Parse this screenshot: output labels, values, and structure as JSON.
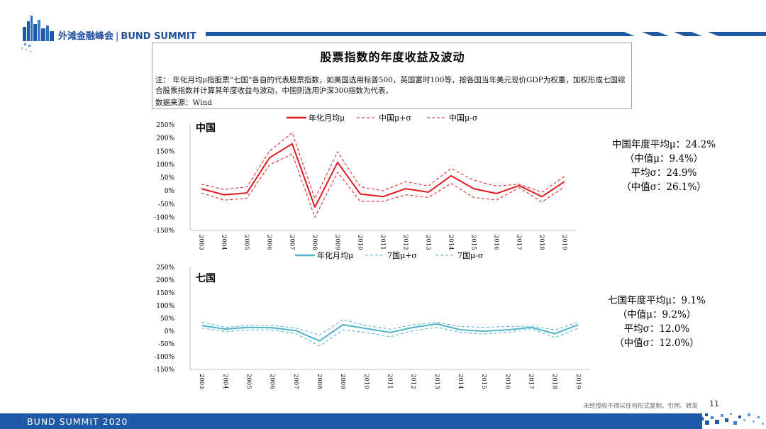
{
  "header": {
    "brand_cn": "外滩金融峰会",
    "brand_en": "BUND SUMMIT"
  },
  "title": "股票指数的年度收益及波动",
  "note": "注：  年化月均μ指股票“七国”各自的代表股票指数，如美国选用标普500，英国富时100等，按各国当年美元现价GDP为权重，加权形成七国综合股票指数并计算其年度收益与波动，中国则选用沪深300指数为代表。",
  "source": "数据来源：Wind",
  "colors": {
    "china": "#e0191e",
    "g7": "#4fb3c9",
    "brand": "#1f5aa6"
  },
  "chart_data": [
    {
      "type": "line",
      "panel_label": "中国",
      "x": [
        "2003",
        "2004",
        "2005",
        "2006",
        "2007",
        "2008",
        "2009",
        "2010",
        "2011",
        "2012",
        "2013",
        "2014",
        "2015",
        "2016",
        "2017",
        "2018",
        "2019"
      ],
      "ylim": [
        -150,
        250
      ],
      "yticks": [
        "250%",
        "200%",
        "150%",
        "100%",
        "50%",
        "0%",
        "-50%",
        "-100%",
        "-150%"
      ],
      "series": [
        {
          "name": "年化月均μ",
          "style": "solid",
          "values": [
            8,
            -15,
            -8,
            125,
            178,
            -62,
            108,
            -12,
            -22,
            8,
            -5,
            57,
            8,
            -10,
            20,
            -22,
            35
          ]
        },
        {
          "name": "中国μ+σ",
          "style": "dashed",
          "values": [
            25,
            5,
            15,
            150,
            220,
            -30,
            148,
            15,
            0,
            35,
            18,
            85,
            40,
            18,
            25,
            -5,
            55
          ]
        },
        {
          "name": "中国μ-σ",
          "style": "dashed",
          "values": [
            -8,
            -35,
            -28,
            98,
            140,
            -100,
            70,
            -40,
            -40,
            -15,
            -25,
            28,
            -25,
            -35,
            12,
            -42,
            15
          ]
        }
      ]
    },
    {
      "type": "line",
      "panel_label": "七国",
      "x": [
        "2003",
        "2004",
        "2005",
        "2006",
        "2007",
        "2008",
        "2009",
        "2010",
        "2011",
        "2012",
        "2013",
        "2014",
        "2015",
        "2016",
        "2017",
        "2018",
        "2019"
      ],
      "ylim": [
        -150,
        250
      ],
      "yticks": [
        "250%",
        "200%",
        "150%",
        "100%",
        "50%",
        "0%",
        "-50%",
        "-100%",
        "-150%"
      ],
      "series": [
        {
          "name": "年化月均μ",
          "style": "solid",
          "values": [
            22,
            8,
            15,
            13,
            2,
            -38,
            25,
            10,
            -5,
            15,
            28,
            5,
            0,
            5,
            15,
            -10,
            25
          ]
        },
        {
          "name": "7国μ+σ",
          "style": "dashed",
          "values": [
            35,
            15,
            22,
            22,
            12,
            -15,
            45,
            22,
            8,
            25,
            35,
            18,
            15,
            18,
            20,
            5,
            35
          ]
        },
        {
          "name": "7国μ-σ",
          "style": "dashed",
          "values": [
            12,
            -2,
            5,
            5,
            -10,
            -58,
            5,
            -5,
            -22,
            2,
            15,
            -5,
            -12,
            -5,
            10,
            -25,
            12
          ]
        }
      ]
    }
  ],
  "stats": {
    "china": [
      "中国年度平均μ：24.2%",
      "（中值μ：9.4%）",
      "平均σ：24.9%",
      "（中值σ：26.1%）"
    ],
    "g7": [
      "七国年度平均μ：9.1%",
      "（中值μ：9.2%）",
      "平均σ：12.0%",
      "（中值σ：12.0%）"
    ]
  },
  "footer": {
    "copyright": "未经授权不得以任何形式复制、引用、转发",
    "page": "11",
    "event": "BUND SUMMIT 2020"
  }
}
